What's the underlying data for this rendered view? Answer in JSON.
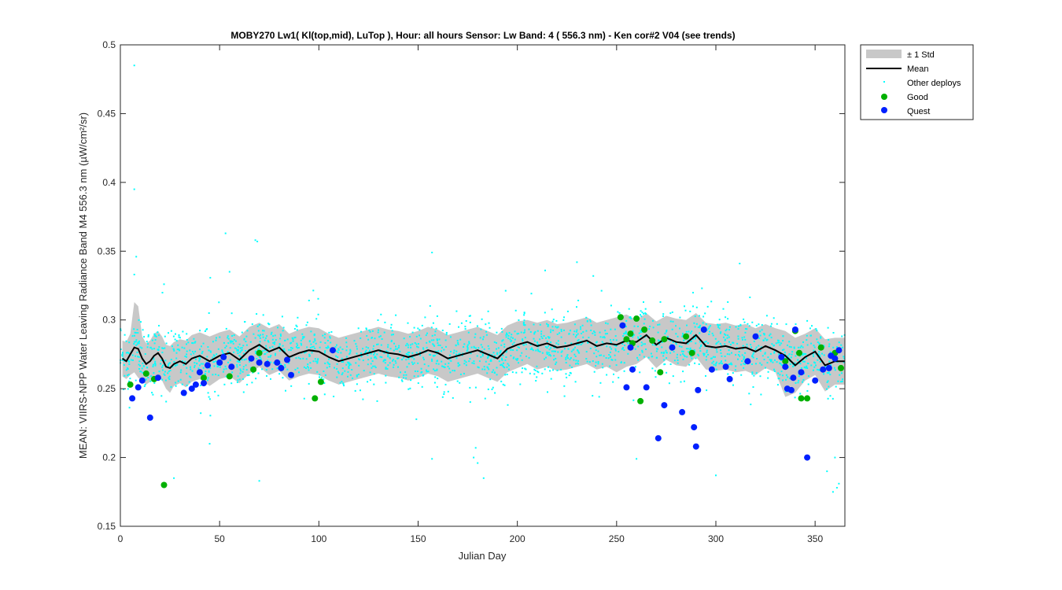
{
  "chart_data": {
    "type": "scatter",
    "title": "MOBY270   Lw1( Kl(top,mid), LuTop ),   Hour: all hours  Sensor: Lw Band: 4 ( 556.3 nm)  - Ken cor#2 V04 (see trends)",
    "xlabel": "Julian Day",
    "ylabel": "MEAN: VIIRS-NPP Water Leaving Radiance Band M4 556.3 nm (µW/cm²/sr)",
    "xlim": [
      0,
      365
    ],
    "ylim": [
      0.15,
      0.5
    ],
    "xticks": [
      0,
      50,
      100,
      150,
      200,
      250,
      300,
      350
    ],
    "yticks": [
      0.15,
      0.2,
      0.25,
      0.3,
      0.35,
      0.4,
      0.45,
      0.5
    ],
    "grid": false,
    "legend_position": "outside-top-right",
    "legend": [
      {
        "label": "± 1 Std",
        "kind": "band"
      },
      {
        "label": "Mean",
        "kind": "line"
      },
      {
        "label": "Other deploys",
        "kind": "dot"
      },
      {
        "label": "Good",
        "kind": "marker"
      },
      {
        "label": "Quest",
        "kind": "marker"
      }
    ],
    "colors": {
      "std_band": "#c8c8c8",
      "mean": "#000000",
      "other": "#00ffff",
      "good": "#00b000",
      "quest": "#0020ff"
    },
    "series": [
      {
        "name": "Mean",
        "type": "line",
        "x": [
          1,
          3,
          5,
          7,
          9,
          11,
          13,
          15,
          17,
          19,
          21,
          23,
          25,
          27,
          30,
          33,
          36,
          40,
          45,
          50,
          55,
          60,
          65,
          70,
          75,
          80,
          85,
          90,
          95,
          100,
          105,
          110,
          115,
          120,
          125,
          130,
          135,
          140,
          145,
          150,
          155,
          160,
          165,
          170,
          175,
          180,
          185,
          190,
          195,
          200,
          205,
          210,
          215,
          220,
          225,
          230,
          235,
          240,
          245,
          250,
          255,
          260,
          265,
          270,
          275,
          280,
          285,
          290,
          295,
          300,
          305,
          310,
          315,
          320,
          325,
          330,
          335,
          340,
          345,
          350,
          355,
          360,
          365
        ],
        "y": [
          0.272,
          0.27,
          0.275,
          0.28,
          0.279,
          0.272,
          0.268,
          0.27,
          0.274,
          0.276,
          0.272,
          0.266,
          0.265,
          0.268,
          0.27,
          0.268,
          0.272,
          0.274,
          0.27,
          0.274,
          0.276,
          0.271,
          0.278,
          0.282,
          0.277,
          0.28,
          0.273,
          0.276,
          0.278,
          0.277,
          0.273,
          0.27,
          0.272,
          0.274,
          0.276,
          0.278,
          0.276,
          0.275,
          0.273,
          0.275,
          0.278,
          0.276,
          0.272,
          0.274,
          0.276,
          0.278,
          0.275,
          0.272,
          0.279,
          0.282,
          0.284,
          0.281,
          0.283,
          0.28,
          0.281,
          0.283,
          0.285,
          0.281,
          0.283,
          0.282,
          0.285,
          0.284,
          0.289,
          0.282,
          0.287,
          0.284,
          0.283,
          0.289,
          0.281,
          0.28,
          0.281,
          0.279,
          0.28,
          0.277,
          0.281,
          0.278,
          0.274,
          0.267,
          0.273,
          0.277,
          0.267,
          0.27,
          0.27
        ]
      },
      {
        "name": "± 1 Std",
        "type": "band",
        "x": [
          1,
          3,
          5,
          7,
          9,
          11,
          13,
          15,
          17,
          19,
          21,
          23,
          25,
          27,
          30,
          33,
          36,
          40,
          45,
          50,
          55,
          60,
          65,
          70,
          75,
          80,
          85,
          90,
          95,
          100,
          105,
          110,
          115,
          120,
          125,
          130,
          135,
          140,
          145,
          150,
          155,
          160,
          165,
          170,
          175,
          180,
          185,
          190,
          195,
          200,
          205,
          210,
          215,
          220,
          225,
          230,
          235,
          240,
          245,
          250,
          255,
          260,
          265,
          270,
          275,
          280,
          285,
          290,
          295,
          300,
          305,
          310,
          315,
          320,
          325,
          330,
          335,
          340,
          345,
          350,
          355,
          360,
          365
        ],
        "upper": [
          0.285,
          0.284,
          0.29,
          0.313,
          0.31,
          0.288,
          0.283,
          0.285,
          0.29,
          0.292,
          0.288,
          0.282,
          0.281,
          0.284,
          0.286,
          0.285,
          0.289,
          0.291,
          0.288,
          0.291,
          0.293,
          0.288,
          0.295,
          0.298,
          0.294,
          0.297,
          0.29,
          0.293,
          0.295,
          0.294,
          0.29,
          0.287,
          0.289,
          0.291,
          0.293,
          0.295,
          0.293,
          0.292,
          0.29,
          0.292,
          0.295,
          0.293,
          0.289,
          0.291,
          0.293,
          0.295,
          0.292,
          0.289,
          0.296,
          0.299,
          0.3,
          0.298,
          0.3,
          0.297,
          0.298,
          0.3,
          0.302,
          0.298,
          0.3,
          0.302,
          0.304,
          0.3,
          0.305,
          0.299,
          0.303,
          0.301,
          0.3,
          0.305,
          0.298,
          0.297,
          0.298,
          0.296,
          0.297,
          0.294,
          0.297,
          0.294,
          0.292,
          0.287,
          0.29,
          0.294,
          0.286,
          0.287,
          0.287
        ],
        "lower": [
          0.259,
          0.257,
          0.26,
          0.262,
          0.258,
          0.256,
          0.253,
          0.255,
          0.258,
          0.26,
          0.256,
          0.25,
          0.247,
          0.252,
          0.254,
          0.251,
          0.255,
          0.257,
          0.252,
          0.257,
          0.259,
          0.254,
          0.261,
          0.266,
          0.26,
          0.263,
          0.256,
          0.259,
          0.261,
          0.26,
          0.256,
          0.253,
          0.255,
          0.257,
          0.259,
          0.261,
          0.259,
          0.258,
          0.256,
          0.258,
          0.261,
          0.259,
          0.255,
          0.257,
          0.259,
          0.261,
          0.258,
          0.255,
          0.262,
          0.265,
          0.268,
          0.264,
          0.266,
          0.263,
          0.264,
          0.266,
          0.268,
          0.264,
          0.266,
          0.262,
          0.266,
          0.268,
          0.273,
          0.265,
          0.271,
          0.267,
          0.266,
          0.273,
          0.264,
          0.263,
          0.264,
          0.262,
          0.263,
          0.26,
          0.265,
          0.262,
          0.244,
          0.247,
          0.256,
          0.26,
          0.248,
          0.253,
          0.253
        ]
      },
      {
        "name": "Good",
        "type": "marker",
        "points": [
          [
            5,
            0.253
          ],
          [
            13,
            0.261
          ],
          [
            17,
            0.257
          ],
          [
            22,
            0.18
          ],
          [
            42,
            0.258
          ],
          [
            55,
            0.259
          ],
          [
            67,
            0.264
          ],
          [
            70,
            0.276
          ],
          [
            98,
            0.243
          ],
          [
            101,
            0.255
          ],
          [
            252,
            0.302
          ],
          [
            255,
            0.286
          ],
          [
            257,
            0.29
          ],
          [
            258,
            0.283
          ],
          [
            260,
            0.301
          ],
          [
            262,
            0.241
          ],
          [
            264,
            0.293
          ],
          [
            268,
            0.285
          ],
          [
            272,
            0.262
          ],
          [
            274,
            0.286
          ],
          [
            285,
            0.288
          ],
          [
            288,
            0.276
          ],
          [
            335,
            0.27
          ],
          [
            340,
            0.292
          ],
          [
            342,
            0.276
          ],
          [
            343,
            0.243
          ],
          [
            346,
            0.243
          ],
          [
            353,
            0.28
          ],
          [
            360,
            0.276
          ],
          [
            363,
            0.265
          ]
        ]
      },
      {
        "name": "Quest",
        "type": "marker",
        "points": [
          [
            6,
            0.243
          ],
          [
            9,
            0.251
          ],
          [
            11,
            0.256
          ],
          [
            15,
            0.229
          ],
          [
            19,
            0.258
          ],
          [
            32,
            0.247
          ],
          [
            36,
            0.25
          ],
          [
            38,
            0.253
          ],
          [
            40,
            0.262
          ],
          [
            42,
            0.254
          ],
          [
            44,
            0.267
          ],
          [
            50,
            0.269
          ],
          [
            52,
            0.273
          ],
          [
            56,
            0.266
          ],
          [
            66,
            0.272
          ],
          [
            70,
            0.269
          ],
          [
            74,
            0.268
          ],
          [
            79,
            0.269
          ],
          [
            81,
            0.265
          ],
          [
            84,
            0.271
          ],
          [
            86,
            0.26
          ],
          [
            107,
            0.278
          ],
          [
            253,
            0.296
          ],
          [
            255,
            0.251
          ],
          [
            257,
            0.28
          ],
          [
            258,
            0.264
          ],
          [
            265,
            0.251
          ],
          [
            271,
            0.214
          ],
          [
            274,
            0.238
          ],
          [
            278,
            0.28
          ],
          [
            283,
            0.233
          ],
          [
            289,
            0.222
          ],
          [
            290,
            0.208
          ],
          [
            291,
            0.249
          ],
          [
            294,
            0.293
          ],
          [
            298,
            0.264
          ],
          [
            305,
            0.266
          ],
          [
            307,
            0.257
          ],
          [
            316,
            0.27
          ],
          [
            320,
            0.288
          ],
          [
            333,
            0.273
          ],
          [
            335,
            0.266
          ],
          [
            336,
            0.25
          ],
          [
            338,
            0.249
          ],
          [
            339,
            0.258
          ],
          [
            340,
            0.293
          ],
          [
            343,
            0.262
          ],
          [
            346,
            0.2
          ],
          [
            350,
            0.256
          ],
          [
            354,
            0.264
          ],
          [
            357,
            0.265
          ],
          [
            358,
            0.274
          ],
          [
            360,
            0.272
          ],
          [
            362,
            0.278
          ]
        ]
      },
      {
        "name": "Other deploys",
        "type": "dots",
        "note_scatter": {
          "count": 2200,
          "sigma": 0.016,
          "outliers": [
            [
              7,
              0.485
            ],
            [
              7,
              0.395
            ],
            [
              8,
              0.346
            ],
            [
              7,
              0.333
            ],
            [
              53,
              0.363
            ],
            [
              68,
              0.358
            ],
            [
              69,
              0.357
            ],
            [
              157,
              0.349
            ],
            [
              230,
              0.342
            ],
            [
              214,
              0.336
            ],
            [
              22,
              0.326
            ],
            [
              55,
              0.335
            ],
            [
              312,
              0.341
            ],
            [
              293,
              0.323
            ],
            [
              260,
              0.199
            ],
            [
              157,
              0.199
            ],
            [
              179,
              0.207
            ],
            [
              178,
              0.2
            ],
            [
              180,
              0.196
            ],
            [
              359,
              0.175
            ],
            [
              361,
              0.178
            ],
            [
              360,
              0.2
            ],
            [
              362,
              0.181
            ],
            [
              183,
              0.185
            ],
            [
              300,
              0.187
            ],
            [
              27,
              0.185
            ],
            [
              356,
              0.19
            ],
            [
              45,
              0.21
            ],
            [
              70,
              0.183
            ]
          ]
        }
      }
    ]
  }
}
